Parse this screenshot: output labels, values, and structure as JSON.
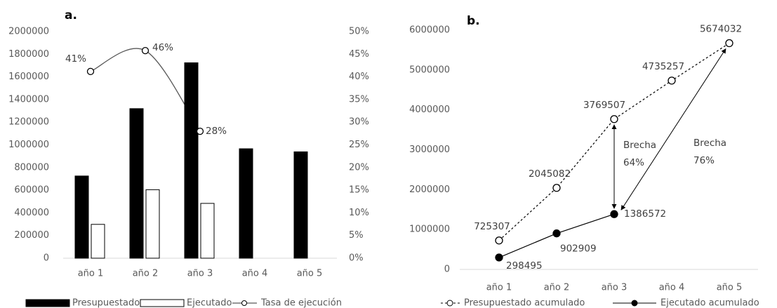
{
  "chart_data": [
    {
      "type": "bar",
      "title": "a.",
      "categories": [
        "año 1",
        "año 2",
        "año 3",
        "año 4",
        "año 5"
      ],
      "series": [
        {
          "name": "Presupuestado",
          "color": "#000000",
          "values": [
            725307,
            1319775,
            1724425,
            965750,
            938775
          ]
        },
        {
          "name": "Ejecutado",
          "color": "#ffffff",
          "values": [
            298495,
            604414,
            483663,
            null,
            null
          ]
        },
        {
          "name": "Tasa de ejecución",
          "type": "line",
          "axis": "y2",
          "color": "#595959",
          "values": [
            41.2,
            45.8,
            28.0,
            null,
            null
          ],
          "value_labels": [
            "41%",
            "46%",
            "28%",
            null,
            null
          ]
        }
      ],
      "ylim": [
        0,
        2000000
      ],
      "yticks": [
        0,
        200000,
        400000,
        600000,
        800000,
        1000000,
        1200000,
        1400000,
        1600000,
        1800000,
        2000000
      ],
      "y2lim": [
        0,
        50
      ],
      "y2ticks": [
        {
          "value": 0,
          "label": "0%"
        },
        {
          "value": 5,
          "label": "5%"
        },
        {
          "value": 10,
          "label": "10%"
        },
        {
          "value": 15,
          "label": "15%"
        },
        {
          "value": 20,
          "label": "20%"
        },
        {
          "value": 25,
          "label": "25%"
        },
        {
          "value": 30,
          "label": "30%"
        },
        {
          "value": 35,
          "label": "35%"
        },
        {
          "value": 40,
          "label": "40%"
        },
        {
          "value": 45,
          "label": "45%"
        },
        {
          "value": 50,
          "label": "50%"
        }
      ],
      "legend": "bottom"
    },
    {
      "type": "line",
      "title": "b.",
      "categories": [
        "año 1",
        "año 2",
        "año 3",
        "año 4",
        "año 5"
      ],
      "series": [
        {
          "name": "Presupuestado acumulado",
          "color": "#000000",
          "line_style": "dashed",
          "marker_fill": "#ffffff",
          "values": [
            725307,
            2045082,
            3769507,
            4735257,
            5674032
          ]
        },
        {
          "name": "Ejecutado acumulado",
          "color": "#000000",
          "line_style": "solid",
          "marker_fill": "#000000",
          "values": [
            298495,
            902909,
            1386572,
            null,
            null
          ]
        }
      ],
      "ylim": [
        0,
        6000000
      ],
      "yticks": [
        0,
        1000000,
        2000000,
        3000000,
        4000000,
        5000000,
        6000000
      ],
      "annotations": [
        [
          "Brecha",
          "64%"
        ],
        [
          "Brecha",
          "76%"
        ]
      ],
      "legend": "bottom"
    }
  ]
}
